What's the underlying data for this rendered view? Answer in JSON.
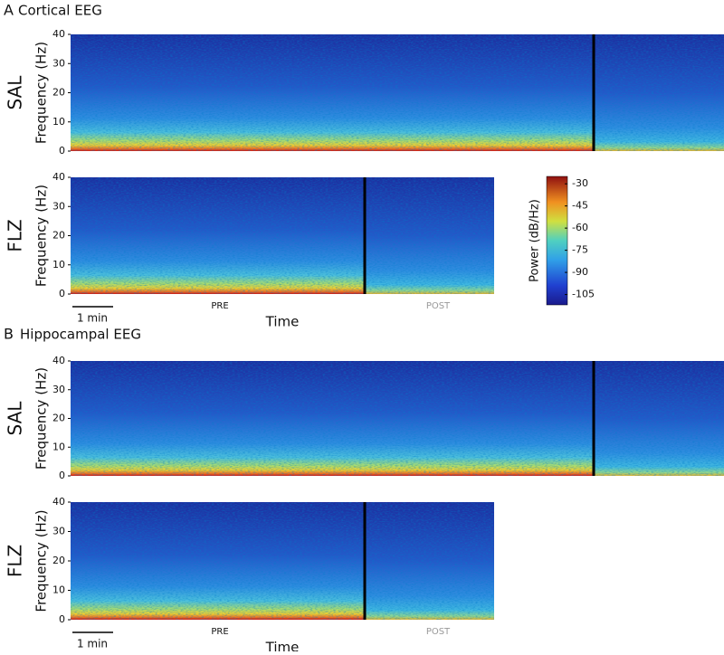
{
  "sections": [
    {
      "letter": "A",
      "title": "Cortical EEG"
    },
    {
      "letter": "B",
      "title": "Hippocampal EEG"
    }
  ],
  "chart_data": [
    {
      "type": "spectrogram",
      "label": "SAL",
      "ylabel": "Frequency (Hz)",
      "ylim": [
        0,
        40
      ],
      "yticks": [
        0,
        10,
        20,
        30,
        40
      ]
    },
    {
      "type": "spectrogram",
      "label": "FLZ",
      "ylabel": "Frequency (Hz)",
      "ylim": [
        0,
        40
      ],
      "yticks": [
        0,
        10,
        20,
        30,
        40
      ],
      "scale_bar": "1 min",
      "phases": [
        "PRE",
        "POST"
      ],
      "xlabel": "Time"
    },
    {
      "type": "spectrogram",
      "label": "SAL",
      "ylabel": "Frequency (Hz)",
      "ylim": [
        0,
        40
      ],
      "yticks": [
        0,
        10,
        20,
        30,
        40
      ]
    },
    {
      "type": "spectrogram",
      "label": "FLZ",
      "ylabel": "Frequency (Hz)",
      "ylim": [
        0,
        40
      ],
      "yticks": [
        0,
        10,
        20,
        30,
        40
      ],
      "scale_bar": "1 min",
      "phases": [
        "PRE",
        "POST"
      ],
      "xlabel": "Time"
    }
  ],
  "colorbar": {
    "label": "Power (dB/Hz)",
    "clim": [
      -112,
      -25
    ],
    "ticks": [
      -30,
      -45,
      -60,
      -75,
      -90,
      -105
    ]
  }
}
